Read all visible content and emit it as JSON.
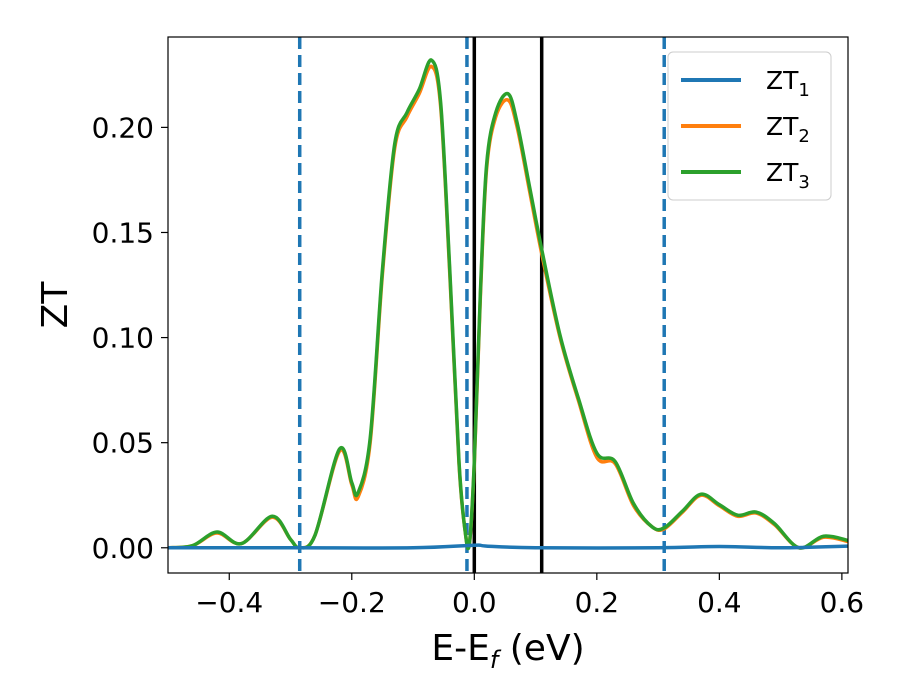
{
  "chart_data": {
    "type": "line",
    "xlabel": "E-E",
    "xlabel_sub": "f",
    "xlabel_unit": " (eV)",
    "ylabel": "ZT",
    "xlim": [
      -0.5,
      0.61
    ],
    "ylim": [
      -0.012,
      0.243
    ],
    "x_ticks": [
      -0.4,
      -0.2,
      0.0,
      0.2,
      0.4,
      0.6
    ],
    "x_tick_labels": [
      "−0.4",
      "−0.2",
      "0.0",
      "0.2",
      "0.4",
      "0.6"
    ],
    "y_ticks": [
      0.0,
      0.05,
      0.1,
      0.15,
      0.2
    ],
    "y_tick_labels": [
      "0.00",
      "0.05",
      "0.10",
      "0.15",
      "0.20"
    ],
    "grid": false,
    "legend_position": "top-right",
    "vlines": [
      {
        "x": -0.285,
        "style": "dashed",
        "color": "#1f77b4"
      },
      {
        "x": -0.012,
        "style": "dashed",
        "color": "#1f77b4"
      },
      {
        "x": 0.31,
        "style": "dashed",
        "color": "#1f77b4"
      },
      {
        "x": 0.0,
        "style": "solid",
        "color": "#000000"
      },
      {
        "x": 0.11,
        "style": "solid",
        "color": "#000000"
      }
    ],
    "series": [
      {
        "name": "ZT",
        "sub": "1",
        "color": "#1f77b4",
        "x": [
          -0.5,
          -0.3,
          -0.1,
          0.0,
          0.02,
          0.1,
          0.3,
          0.4,
          0.5,
          0.61
        ],
        "y": [
          0.0,
          0.0,
          0.0,
          0.0012,
          0.0008,
          0.0,
          0.0,
          0.0006,
          0.0,
          0.0008
        ]
      },
      {
        "name": "ZT",
        "sub": "2",
        "color": "#ff7f0e",
        "x": [
          -0.5,
          -0.46,
          -0.42,
          -0.38,
          -0.33,
          -0.3,
          -0.285,
          -0.26,
          -0.22,
          -0.2,
          -0.19,
          -0.17,
          -0.15,
          -0.13,
          -0.11,
          -0.09,
          -0.07,
          -0.055,
          -0.04,
          -0.025,
          -0.015,
          -0.008,
          0.0,
          0.01,
          0.02,
          0.035,
          0.055,
          0.07,
          0.09,
          0.11,
          0.14,
          0.17,
          0.2,
          0.23,
          0.26,
          0.29,
          0.31,
          0.34,
          0.37,
          0.4,
          0.43,
          0.46,
          0.49,
          0.53,
          0.57,
          0.61
        ],
        "y": [
          0.0,
          0.001,
          0.007,
          0.002,
          0.0145,
          0.004,
          0.0,
          0.006,
          0.046,
          0.03,
          0.024,
          0.05,
          0.13,
          0.19,
          0.205,
          0.216,
          0.229,
          0.21,
          0.13,
          0.04,
          0.008,
          0.002,
          0.04,
          0.12,
          0.18,
          0.205,
          0.213,
          0.2,
          0.17,
          0.14,
          0.1,
          0.07,
          0.043,
          0.04,
          0.02,
          0.01,
          0.009,
          0.017,
          0.025,
          0.02,
          0.015,
          0.0165,
          0.011,
          0.0,
          0.005,
          0.003
        ]
      },
      {
        "name": "ZT",
        "sub": "3",
        "color": "#2ca02c",
        "x": [
          -0.5,
          -0.46,
          -0.42,
          -0.38,
          -0.33,
          -0.3,
          -0.285,
          -0.26,
          -0.22,
          -0.2,
          -0.19,
          -0.17,
          -0.15,
          -0.13,
          -0.11,
          -0.09,
          -0.07,
          -0.055,
          -0.04,
          -0.025,
          -0.015,
          -0.008,
          0.0,
          0.01,
          0.02,
          0.035,
          0.055,
          0.07,
          0.09,
          0.11,
          0.14,
          0.17,
          0.2,
          0.23,
          0.26,
          0.29,
          0.31,
          0.34,
          0.37,
          0.4,
          0.43,
          0.46,
          0.49,
          0.53,
          0.57,
          0.61
        ],
        "y": [
          0.0,
          0.001,
          0.0075,
          0.002,
          0.015,
          0.004,
          0.0,
          0.006,
          0.047,
          0.031,
          0.026,
          0.052,
          0.132,
          0.192,
          0.207,
          0.218,
          0.232,
          0.212,
          0.132,
          0.041,
          0.008,
          0.002,
          0.041,
          0.122,
          0.182,
          0.207,
          0.216,
          0.202,
          0.172,
          0.142,
          0.101,
          0.071,
          0.045,
          0.041,
          0.021,
          0.01,
          0.0095,
          0.0175,
          0.0255,
          0.0205,
          0.0155,
          0.017,
          0.0115,
          0.0,
          0.0055,
          0.0035
        ]
      }
    ]
  }
}
